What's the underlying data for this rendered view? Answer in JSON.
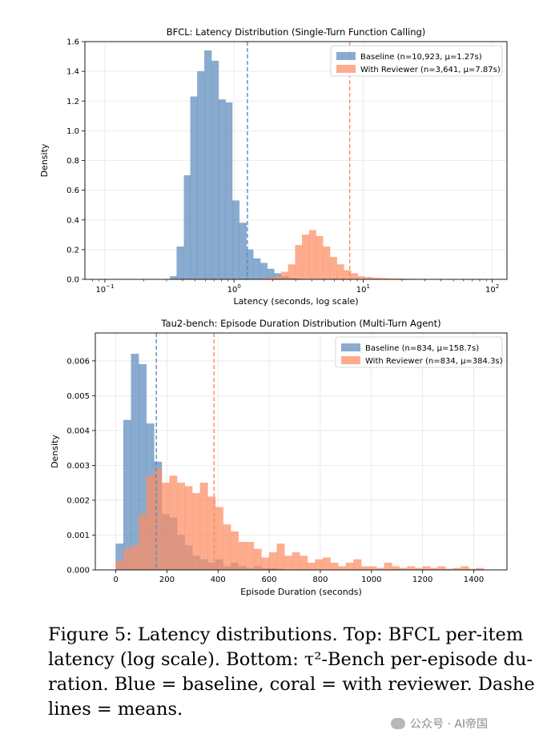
{
  "chart_data": [
    {
      "type": "histogram",
      "title": "BFCL: Latency Distribution (Single-Turn Function Calling)",
      "xlabel": "Latency (seconds, log scale)",
      "ylabel": "Density",
      "xscale": "log",
      "xlim": [
        0.07,
        130
      ],
      "ylim": [
        0,
        1.6
      ],
      "xticks": [
        {
          "value": 0.1,
          "base": "10",
          "exp": "−1"
        },
        {
          "value": 1,
          "base": "10",
          "exp": "0"
        },
        {
          "value": 10,
          "base": "10",
          "exp": "1"
        },
        {
          "value": 100,
          "base": "10",
          "exp": "2"
        }
      ],
      "yticks": [
        "0.0",
        "0.2",
        "0.4",
        "0.6",
        "0.8",
        "1.0",
        "1.2",
        "1.4",
        "1.6"
      ],
      "grid": true,
      "legend_position": "top-right",
      "series": [
        {
          "name": "Baseline (n=10,923, μ=1.27s)",
          "color": "#5b8bbd",
          "mean": 1.27,
          "bin_edges": [
            0.32,
            0.36,
            0.41,
            0.46,
            0.52,
            0.59,
            0.67,
            0.76,
            0.86,
            0.97,
            1.1,
            1.25,
            1.41,
            1.6,
            1.81,
            2.05,
            2.32,
            2.63,
            2.98,
            3.37
          ],
          "values": [
            0.02,
            0.22,
            0.7,
            1.23,
            1.4,
            1.54,
            1.47,
            1.21,
            1.19,
            0.53,
            0.38,
            0.2,
            0.14,
            0.11,
            0.07,
            0.04,
            0.02,
            0.01,
            0.005
          ]
        },
        {
          "name": "With Reviewer (n=3,641, μ=7.87s)",
          "color": "#fc8d62",
          "mean": 7.87,
          "bin_edges": [
            1.6,
            1.81,
            2.05,
            2.32,
            2.63,
            2.98,
            3.37,
            3.82,
            4.32,
            4.89,
            5.54,
            6.27,
            7.1,
            8.04,
            9.1,
            10.3,
            11.7,
            13.2,
            15.0,
            17.0,
            19.2,
            21.7,
            24.6,
            27.9,
            31.6
          ],
          "values": [
            0.005,
            0.01,
            0.02,
            0.05,
            0.1,
            0.23,
            0.3,
            0.33,
            0.29,
            0.22,
            0.15,
            0.1,
            0.06,
            0.04,
            0.02,
            0.015,
            0.01,
            0.008,
            0.006,
            0.005,
            0.004,
            0.003,
            0.002,
            0.001
          ]
        }
      ]
    },
    {
      "type": "histogram",
      "title": "Tau2-bench: Episode Duration Distribution (Multi-Turn Agent)",
      "xlabel": "Episode Duration (seconds)",
      "ylabel": "Density",
      "xlim": [
        -80,
        1530
      ],
      "ylim": [
        0,
        0.0068
      ],
      "xticks": [
        "0",
        "200",
        "400",
        "600",
        "800",
        "1000",
        "1200",
        "1400"
      ],
      "yticks": [
        "0.000",
        "0.001",
        "0.002",
        "0.003",
        "0.004",
        "0.005",
        "0.006"
      ],
      "grid": true,
      "legend_position": "top-right",
      "series": [
        {
          "name": "Baseline (n=834, μ=158.7s)",
          "color": "#5b8bbd",
          "mean": 158.7,
          "bin_start": 0,
          "bin_width": 30,
          "values": [
            0.00075,
            0.0043,
            0.0062,
            0.0059,
            0.0042,
            0.0031,
            0.0016,
            0.0015,
            0.001,
            0.0007,
            0.0004,
            0.0003,
            0.0002,
            0.0003,
            0.0001,
            0.0002,
            0.0001,
            5e-05,
            0.0001,
            5e-05,
            5e-05,
            3e-05
          ]
        },
        {
          "name": "With Reviewer (n=834, μ=384.3s)",
          "color": "#fc8d62",
          "mean": 384.3,
          "bin_start": 0,
          "bin_width": 30,
          "values": [
            0.00025,
            0.0006,
            0.0007,
            0.0016,
            0.0027,
            0.0029,
            0.0025,
            0.0027,
            0.0025,
            0.0024,
            0.0022,
            0.0025,
            0.0021,
            0.0018,
            0.0013,
            0.0011,
            0.0008,
            0.0008,
            0.0006,
            0.00035,
            0.0005,
            0.00075,
            0.0004,
            0.0005,
            0.0004,
            0.0002,
            0.0003,
            0.00035,
            0.0002,
            0.0001,
            0.0002,
            0.0003,
            0.0001,
            0.0001,
            5e-05,
            0.0002,
            0.0001,
            5e-05,
            0.0001,
            5e-05,
            0.0001,
            5e-05,
            0.0001,
            3e-05,
            5e-05,
            0.0001,
            3e-05,
            5e-05
          ]
        }
      ]
    }
  ],
  "caption": {
    "lines": [
      "Figure 5: Latency distributions. Top: BFCL per-item",
      "latency (log scale). Bottom: τ²-Bench per-episode du-",
      "ration. Blue = baseline, coral = with reviewer. Dashed",
      "lines = means."
    ]
  },
  "watermark": "公众号 · AI帝国"
}
